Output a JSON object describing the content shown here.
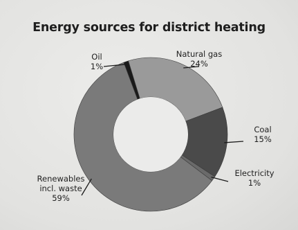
{
  "chart_data": {
    "type": "pie",
    "variant": "donut",
    "title": "Energy sources for district heating",
    "series": [
      {
        "name": "Natural gas",
        "value": 24,
        "label_lines": [
          "Natural gas",
          "24%"
        ],
        "color": "#9a9a9a"
      },
      {
        "name": "Coal",
        "value": 15,
        "label_lines": [
          "Coal",
          "15%"
        ],
        "color": "#4a4a4a"
      },
      {
        "name": "Electricity",
        "value": 1,
        "label_lines": [
          "Electricity",
          "1%"
        ],
        "color": "#6a6a6a"
      },
      {
        "name": "Renewables incl. waste",
        "value": 59,
        "label_lines": [
          "Renewables",
          "incl. waste",
          "59%"
        ],
        "color": "#7a7a7a"
      },
      {
        "name": "Oil",
        "value": 1,
        "label_lines": [
          "Oil",
          "1%"
        ],
        "color": "#1a1a1a"
      }
    ]
  }
}
